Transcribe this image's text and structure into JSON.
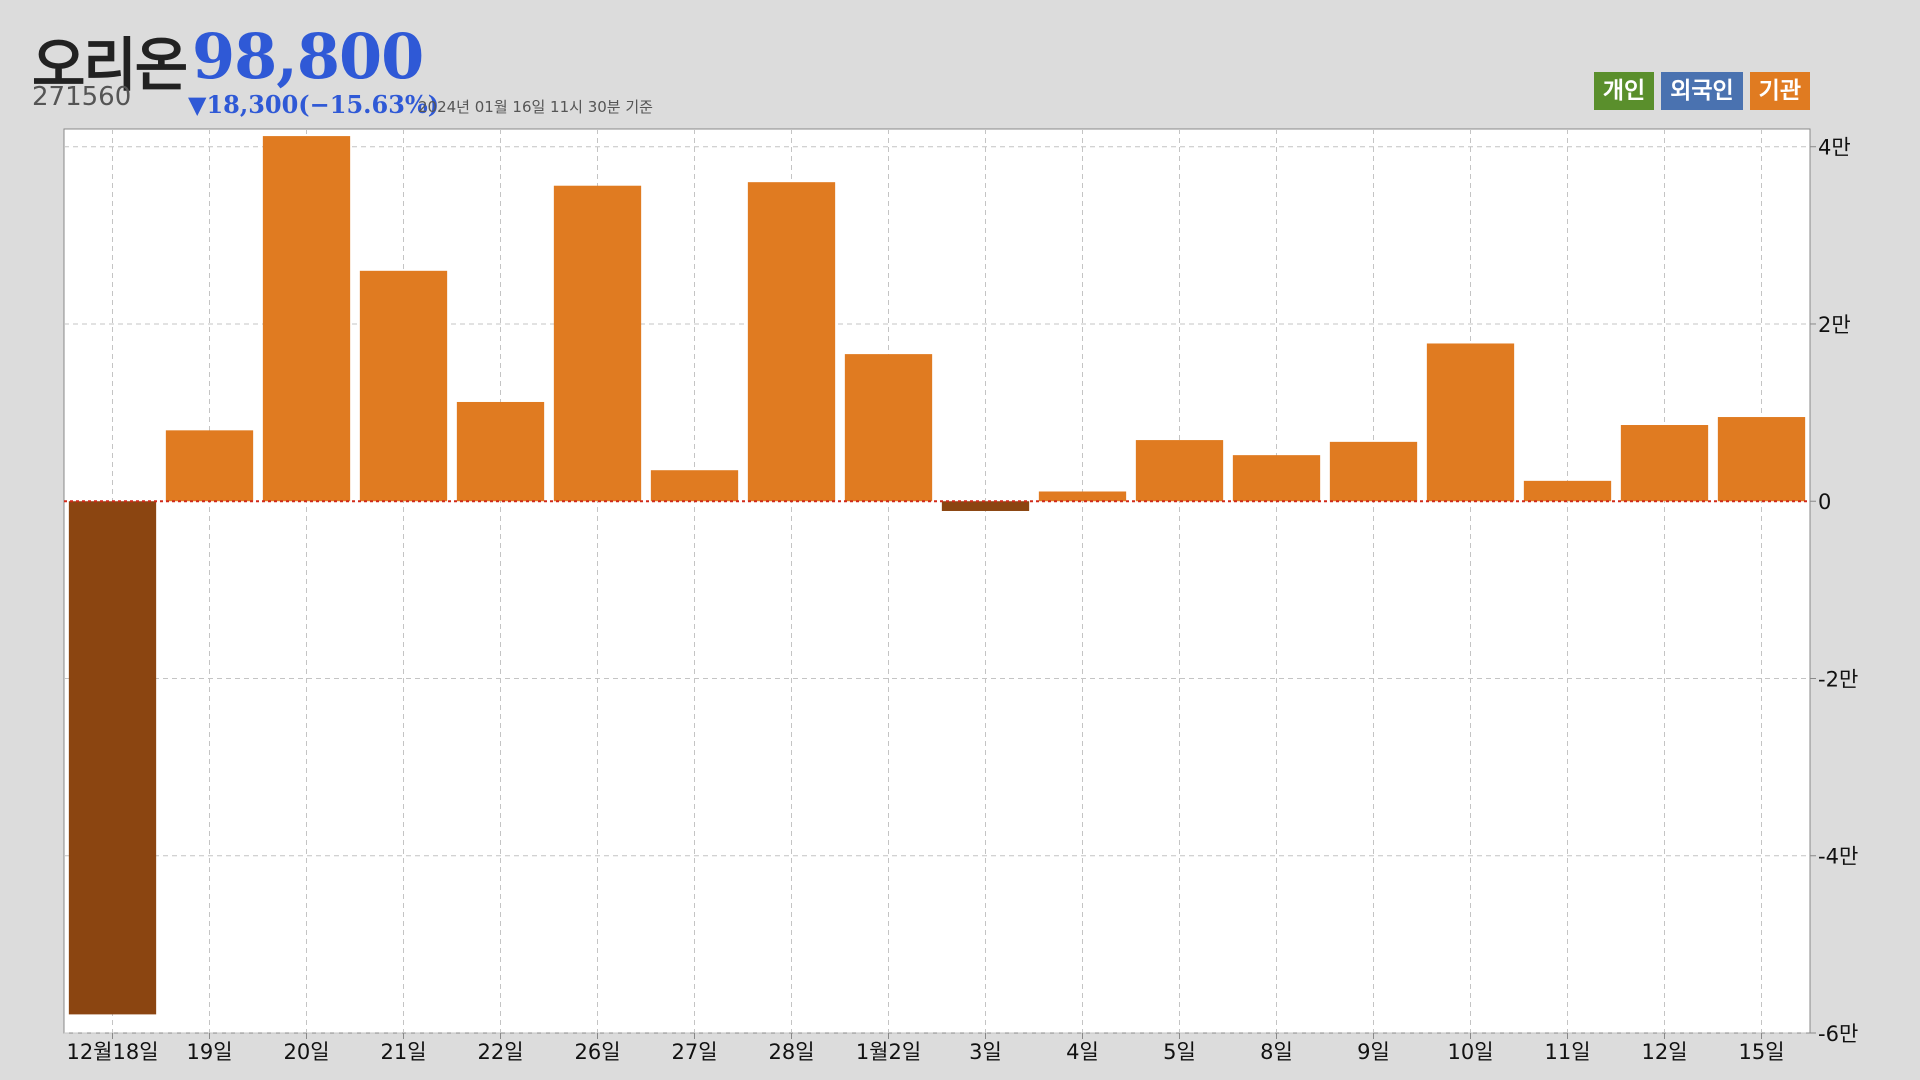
{
  "header": {
    "name": "오리온",
    "price": "98,800",
    "code": "271560",
    "change": "▼18,300(−15.63%)",
    "timestamp": "2024년 01월 16일 11시 30분 기준"
  },
  "legend": [
    {
      "label": "개인",
      "color": "#5a8f2c"
    },
    {
      "label": "외국인",
      "color": "#4a72b0"
    },
    {
      "label": "기관",
      "color": "#e07b21"
    }
  ],
  "chart_data": {
    "type": "bar",
    "title": "",
    "xlabel": "",
    "ylabel": "",
    "categories": [
      "12월18일",
      "19일",
      "20일",
      "21일",
      "22일",
      "26일",
      "27일",
      "28일",
      "1월2일",
      "3일",
      "4일",
      "5일",
      "8일",
      "9일",
      "10일",
      "11일",
      "12일",
      "15일"
    ],
    "series": [
      {
        "name": "기관",
        "values": [
          -57900,
          8000,
          41200,
          26000,
          11200,
          35600,
          3500,
          36000,
          16600,
          -1100,
          1100,
          6900,
          5200,
          6700,
          17800,
          2300,
          8600,
          9500
        ]
      }
    ],
    "positive_color": "#e07b21",
    "negative_color": "#8b4511",
    "ylim": [
      -60000,
      42000
    ],
    "yticks": [
      40000,
      20000,
      0,
      -20000,
      -40000,
      -60000
    ],
    "ytick_labels": [
      "4만",
      "2만",
      "0",
      "-2만",
      "-4만",
      "-6만"
    ],
    "y_axis_side": "right",
    "grid": true,
    "zero_line": "red-dotted"
  }
}
